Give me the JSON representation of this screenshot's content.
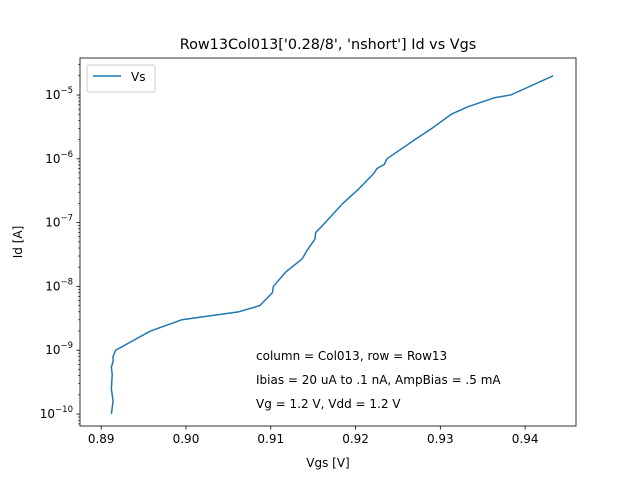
{
  "chart_data": {
    "type": "line",
    "title": "Row13Col013['0.28/8', 'nshort'] Id vs Vgs",
    "xlabel": "Vgs [V]",
    "ylabel": "Id [A]",
    "yscale": "log",
    "xlim": [
      0.8875,
      0.946
    ],
    "ylim": [
      6.5e-11,
      3.8e-05
    ],
    "grid": false,
    "legend_position": "top-left",
    "x_ticks": [
      {
        "value": 0.89,
        "label": "0.89"
      },
      {
        "value": 0.9,
        "label": "0.90"
      },
      {
        "value": 0.91,
        "label": "0.91"
      },
      {
        "value": 0.92,
        "label": "0.92"
      },
      {
        "value": 0.93,
        "label": "0.93"
      },
      {
        "value": 0.94,
        "label": "0.94"
      }
    ],
    "y_ticks": [
      {
        "value": 1e-10,
        "base": "10",
        "exp": "−10"
      },
      {
        "value": 1e-09,
        "base": "10",
        "exp": "−9"
      },
      {
        "value": 1e-08,
        "base": "10",
        "exp": "−8"
      },
      {
        "value": 1e-07,
        "base": "10",
        "exp": "−7"
      },
      {
        "value": 1e-06,
        "base": "10",
        "exp": "−6"
      },
      {
        "value": 1e-05,
        "base": "10",
        "exp": "−5"
      }
    ],
    "series": [
      {
        "name": "Vs",
        "color": "#1f77b4",
        "points": [
          [
            0.8912,
            1e-10
          ],
          [
            0.8914,
            1.6e-10
          ],
          [
            0.8912,
            2.5e-10
          ],
          [
            0.8913,
            4.2e-10
          ],
          [
            0.8912,
            5.4e-10
          ],
          [
            0.8914,
            6.7e-10
          ],
          [
            0.8914,
            8e-10
          ],
          [
            0.8917,
            1e-09
          ],
          [
            0.8958,
            2e-09
          ],
          [
            0.8995,
            3e-09
          ],
          [
            0.9062,
            4e-09
          ],
          [
            0.9087,
            5e-09
          ],
          [
            0.91,
            7.5e-09
          ],
          [
            0.9102,
            8e-09
          ],
          [
            0.9103,
            1e-08
          ],
          [
            0.9118,
            1.7e-08
          ],
          [
            0.9137,
            2.7e-08
          ],
          [
            0.9143,
            3.7e-08
          ],
          [
            0.9152,
            5.5e-08
          ],
          [
            0.9153,
            7e-08
          ],
          [
            0.9161,
            9e-08
          ],
          [
            0.9172,
            1.3e-07
          ],
          [
            0.9185,
            2e-07
          ],
          [
            0.9205,
            3.5e-07
          ],
          [
            0.9222,
            6e-07
          ],
          [
            0.9225,
            7e-07
          ],
          [
            0.9234,
            8.2e-07
          ],
          [
            0.9237,
            1e-06
          ],
          [
            0.927,
            2e-06
          ],
          [
            0.929,
            3e-06
          ],
          [
            0.9303,
            4e-06
          ],
          [
            0.9313,
            5e-06
          ],
          [
            0.9332,
            6.5e-06
          ],
          [
            0.9363,
            9e-06
          ],
          [
            0.9383,
            1e-05
          ],
          [
            0.9433,
            2e-05
          ]
        ]
      }
    ],
    "annotations": [
      "column = Col013, row = Row13",
      "Ibias = 20 uA to .1 nA, AmpBias = .5 mA",
      "Vg = 1.2 V, Vdd = 1.2 V"
    ]
  }
}
